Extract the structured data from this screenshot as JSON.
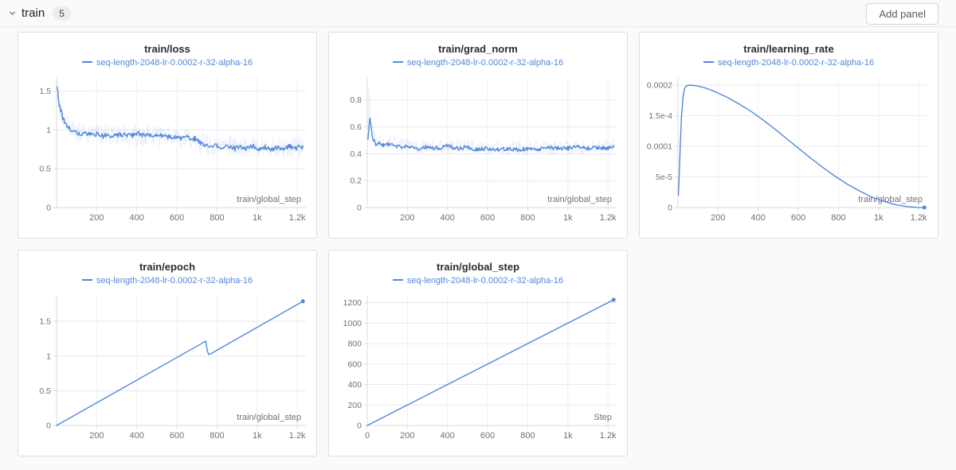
{
  "header": {
    "section_label": "train",
    "panel_count": "5",
    "add_panel_label": "Add panel"
  },
  "colors": {
    "run_blue": "#5387dd",
    "grid_h": "#e7e9ed",
    "grid_v": "#eef0f3",
    "axis": "#d9dbdf",
    "tick_text": "#6f7179",
    "panel_bg": "#ffffff",
    "page_bg": "#fafafa"
  },
  "legend_label": "seq-length-2048-lr-0.0002-r-32-alpha-16",
  "chart_data": [
    {
      "type": "line",
      "title": "train/loss",
      "legend": "seq-length-2048-lr-0.0002-r-32-alpha-16",
      "x_axis_title": "train/global_step",
      "x_range": [
        0,
        1243
      ],
      "y_range": [
        0,
        1.68
      ],
      "x_ticks": {
        "values": [
          200,
          400,
          600,
          800,
          1000,
          1200
        ],
        "labels": [
          "200",
          "400",
          "600",
          "800",
          "1k",
          "1.2k"
        ]
      },
      "y_ticks": {
        "values": [
          0,
          0.5,
          1,
          1.5
        ],
        "labels": [
          "0",
          "0.5",
          "1",
          "1.5"
        ]
      },
      "end_dot": false,
      "series": [
        {
          "name": "raw",
          "opacity": 0.12,
          "width": 1,
          "noise_amp": 0.14,
          "noise_step": 3,
          "seed": 3,
          "points": [
            [
              3,
              1.56
            ],
            [
              10,
              1.4
            ],
            [
              25,
              1.22
            ],
            [
              50,
              1.06
            ],
            [
              100,
              0.97
            ],
            [
              300,
              0.93
            ],
            [
              600,
              0.91
            ],
            [
              700,
              0.86
            ],
            [
              760,
              0.8
            ],
            [
              1000,
              0.78
            ],
            [
              1228,
              0.78
            ]
          ]
        },
        {
          "name": "smoothed",
          "opacity": 1,
          "width": 1.4,
          "noise_amp": 0.032,
          "noise_step": 4,
          "seed": 7,
          "points": [
            [
              3,
              1.56
            ],
            [
              8,
              1.44
            ],
            [
              14,
              1.33
            ],
            [
              20,
              1.26
            ],
            [
              28,
              1.18
            ],
            [
              38,
              1.11
            ],
            [
              50,
              1.06
            ],
            [
              65,
              1.01
            ],
            [
              85,
              0.98
            ],
            [
              110,
              0.96
            ],
            [
              140,
              0.95
            ],
            [
              170,
              0.93
            ],
            [
              200,
              0.95
            ],
            [
              230,
              0.92
            ],
            [
              260,
              0.94
            ],
            [
              290,
              0.92
            ],
            [
              320,
              0.95
            ],
            [
              350,
              0.92
            ],
            [
              380,
              0.93
            ],
            [
              410,
              0.95
            ],
            [
              440,
              0.92
            ],
            [
              470,
              0.93
            ],
            [
              500,
              0.92
            ],
            [
              530,
              0.93
            ],
            [
              560,
              0.91
            ],
            [
              590,
              0.92
            ],
            [
              620,
              0.89
            ],
            [
              650,
              0.91
            ],
            [
              670,
              0.87
            ],
            [
              690,
              0.89
            ],
            [
              710,
              0.84
            ],
            [
              730,
              0.82
            ],
            [
              750,
              0.79
            ],
            [
              775,
              0.78
            ],
            [
              800,
              0.8
            ],
            [
              830,
              0.77
            ],
            [
              860,
              0.79
            ],
            [
              890,
              0.76
            ],
            [
              920,
              0.78
            ],
            [
              950,
              0.76
            ],
            [
              980,
              0.79
            ],
            [
              1010,
              0.76
            ],
            [
              1040,
              0.78
            ],
            [
              1070,
              0.75
            ],
            [
              1100,
              0.78
            ],
            [
              1130,
              0.76
            ],
            [
              1160,
              0.79
            ],
            [
              1190,
              0.76
            ],
            [
              1215,
              0.78
            ],
            [
              1228,
              0.77
            ]
          ]
        }
      ]
    },
    {
      "type": "line",
      "title": "train/grad_norm",
      "legend": "seq-length-2048-lr-0.0002-r-32-alpha-16",
      "x_axis_title": "train/global_step",
      "x_range": [
        0,
        1243
      ],
      "y_range": [
        0,
        0.97
      ],
      "x_ticks": {
        "values": [
          200,
          400,
          600,
          800,
          1000,
          1200
        ],
        "labels": [
          "200",
          "400",
          "600",
          "800",
          "1k",
          "1.2k"
        ]
      },
      "y_ticks": {
        "values": [
          0,
          0.2,
          0.4,
          0.6,
          0.8
        ],
        "labels": [
          "0",
          "0.2",
          "0.4",
          "0.6",
          "0.8"
        ]
      },
      "end_dot": false,
      "series": [
        {
          "name": "raw",
          "opacity": 0.12,
          "width": 1,
          "noise_amp": 0.055,
          "noise_step": 3,
          "seed": 5,
          "points": [
            [
              3,
              0.52
            ],
            [
              8,
              0.92
            ],
            [
              13,
              0.74
            ],
            [
              20,
              0.6
            ],
            [
              35,
              0.52
            ],
            [
              80,
              0.48
            ],
            [
              200,
              0.46
            ],
            [
              500,
              0.45
            ],
            [
              800,
              0.44
            ],
            [
              1100,
              0.45
            ],
            [
              1228,
              0.46
            ]
          ]
        },
        {
          "name": "smoothed",
          "opacity": 1,
          "width": 1.4,
          "noise_amp": 0.015,
          "noise_step": 4,
          "seed": 11,
          "points": [
            [
              3,
              0.5
            ],
            [
              8,
              0.57
            ],
            [
              13,
              0.67
            ],
            [
              18,
              0.61
            ],
            [
              24,
              0.54
            ],
            [
              32,
              0.5
            ],
            [
              45,
              0.47
            ],
            [
              60,
              0.48
            ],
            [
              80,
              0.46
            ],
            [
              110,
              0.47
            ],
            [
              150,
              0.45
            ],
            [
              200,
              0.46
            ],
            [
              250,
              0.44
            ],
            [
              300,
              0.45
            ],
            [
              350,
              0.44
            ],
            [
              400,
              0.46
            ],
            [
              450,
              0.44
            ],
            [
              500,
              0.45
            ],
            [
              550,
              0.43
            ],
            [
              600,
              0.44
            ],
            [
              650,
              0.43
            ],
            [
              700,
              0.44
            ],
            [
              750,
              0.43
            ],
            [
              800,
              0.44
            ],
            [
              850,
              0.43
            ],
            [
              900,
              0.45
            ],
            [
              950,
              0.44
            ],
            [
              1000,
              0.44
            ],
            [
              1050,
              0.45
            ],
            [
              1100,
              0.44
            ],
            [
              1150,
              0.45
            ],
            [
              1200,
              0.44
            ],
            [
              1228,
              0.46
            ]
          ]
        }
      ]
    },
    {
      "type": "line",
      "title": "train/learning_rate",
      "legend": "seq-length-2048-lr-0.0002-r-32-alpha-16",
      "x_axis_title": "train/global_step",
      "x_range": [
        0,
        1243
      ],
      "y_range": [
        0,
        0.000213
      ],
      "x_ticks": {
        "values": [
          200,
          400,
          600,
          800,
          1000,
          1200
        ],
        "labels": [
          "200",
          "400",
          "600",
          "800",
          "1k",
          "1.2k"
        ]
      },
      "y_ticks": {
        "values": [
          0,
          5e-05,
          0.0001,
          0.00015,
          0.0002
        ],
        "labels": [
          "0",
          "5e-5",
          "0.0001",
          "1.5e-4",
          "0.0002"
        ]
      },
      "end_dot": true,
      "series": [
        {
          "name": "lr",
          "opacity": 1,
          "width": 1.4,
          "noise_amp": 0,
          "noise_step": 0,
          "seed": 0,
          "points": [
            [
              2,
              2e-05
            ],
            [
              6,
              5e-05
            ],
            [
              12,
              0.000105
            ],
            [
              18,
              0.00015
            ],
            [
              25,
              0.00018
            ],
            [
              32,
              0.000194
            ],
            [
              42,
              0.000199
            ],
            [
              60,
              0.0002
            ],
            [
              90,
              0.000199
            ],
            [
              130,
              0.000196
            ],
            [
              180,
              0.00019
            ],
            [
              240,
              0.000181
            ],
            [
              300,
              0.00017
            ],
            [
              360,
              0.000158
            ],
            [
              420,
              0.000144
            ],
            [
              480,
              0.000129
            ],
            [
              540,
              0.000113
            ],
            [
              600,
              9.7e-05
            ],
            [
              660,
              8.1e-05
            ],
            [
              720,
              6.6e-05
            ],
            [
              780,
              5.2e-05
            ],
            [
              840,
              3.9e-05
            ],
            [
              900,
              2.8e-05
            ],
            [
              960,
              1.8e-05
            ],
            [
              1020,
              1.1e-05
            ],
            [
              1080,
              5e-06
            ],
            [
              1140,
              1.7e-06
            ],
            [
              1190,
              3e-07
            ],
            [
              1228,
              1e-07
            ]
          ]
        }
      ]
    },
    {
      "type": "line",
      "title": "train/epoch",
      "legend": "seq-length-2048-lr-0.0002-r-32-alpha-16",
      "x_axis_title": "train/global_step",
      "x_range": [
        0,
        1243
      ],
      "y_range": [
        0,
        1.88
      ],
      "x_ticks": {
        "values": [
          200,
          400,
          600,
          800,
          1000,
          1200
        ],
        "labels": [
          "200",
          "400",
          "600",
          "800",
          "1k",
          "1.2k"
        ]
      },
      "y_ticks": {
        "values": [
          0,
          0.5,
          1,
          1.5
        ],
        "labels": [
          "0",
          "0.5",
          "1",
          "1.5"
        ]
      },
      "end_dot": true,
      "series": [
        {
          "name": "epoch",
          "opacity": 1,
          "width": 1.4,
          "noise_amp": 0,
          "noise_step": 0,
          "seed": 0,
          "points": [
            [
              0,
              0
            ],
            [
              744,
              1.215
            ],
            [
              752,
              1.07
            ],
            [
              758,
              1.025
            ],
            [
              768,
              1.033
            ],
            [
              1228,
              1.79
            ]
          ]
        }
      ]
    },
    {
      "type": "line",
      "title": "train/global_step",
      "legend": "seq-length-2048-lr-0.0002-r-32-alpha-16",
      "x_axis_title": "Step",
      "x_range": [
        0,
        1243
      ],
      "y_range": [
        0,
        1275
      ],
      "x_ticks": {
        "values": [
          0,
          200,
          400,
          600,
          800,
          1000,
          1200
        ],
        "labels": [
          "0",
          "200",
          "400",
          "600",
          "800",
          "1k",
          "1.2k"
        ]
      },
      "y_ticks": {
        "values": [
          0,
          200,
          400,
          600,
          800,
          1000,
          1200
        ],
        "labels": [
          "0",
          "200",
          "400",
          "600",
          "800",
          "1000",
          "1200"
        ]
      },
      "end_dot": true,
      "series": [
        {
          "name": "global_step",
          "opacity": 1,
          "width": 1.4,
          "noise_amp": 0,
          "noise_step": 0,
          "seed": 0,
          "points": [
            [
              0,
              0
            ],
            [
              1228,
              1228
            ]
          ]
        }
      ]
    }
  ]
}
